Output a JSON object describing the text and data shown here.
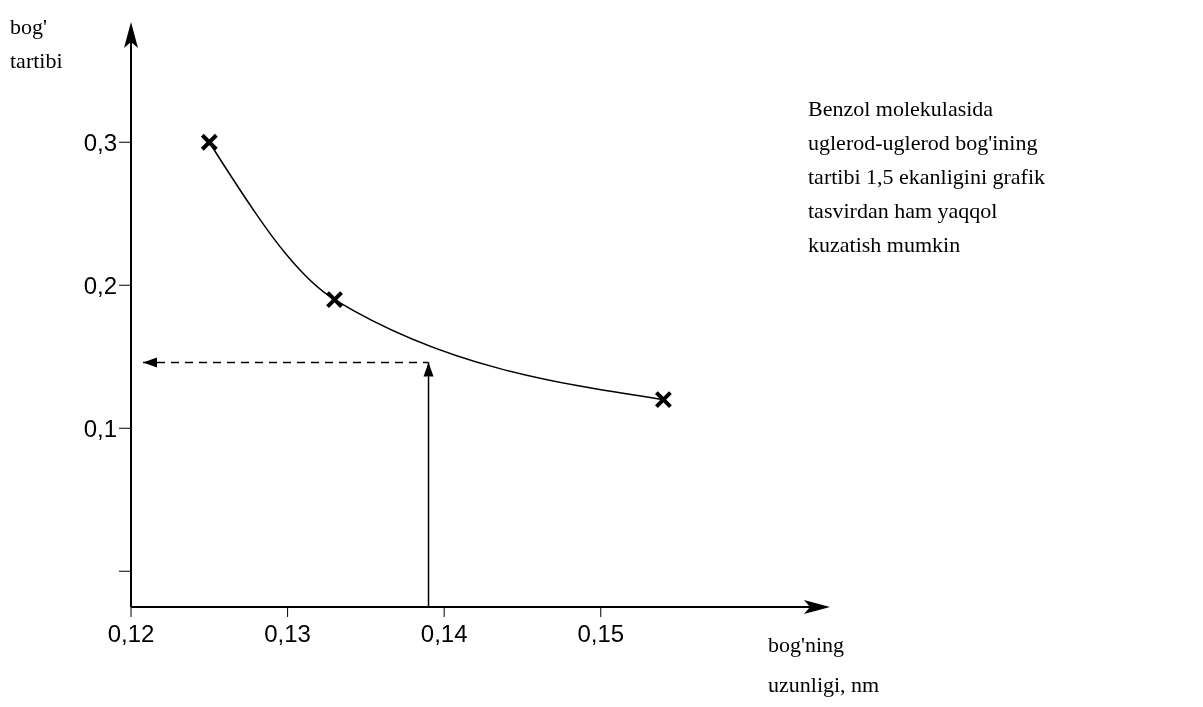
{
  "chart_data": {
    "type": "line",
    "xlabel": "bog'ning\nuzunligi, nm",
    "ylabel": "bog'\ntartibi",
    "annotations": [
      "Benzol molekulasida\nuglerod-uglerod bog'ining\ntartibi 1,5 ekanligini grafik\ntasvirdan ham yaqqol\nkuzatish mumkin"
    ],
    "x": [
      0.125,
      0.133,
      0.154
    ],
    "series": [
      {
        "color": "#000000",
        "values": [
          0.3,
          0.19,
          0.12
        ]
      }
    ],
    "marker": "cross",
    "line_style": "solid",
    "xlim": [
      0.12,
      0.164
    ],
    "xticks": [
      {
        "value": 0.12,
        "label": "0,12"
      },
      {
        "value": 0.13,
        "label": "0,13"
      },
      {
        "value": 0.14,
        "label": "0,14"
      },
      {
        "value": 0.15,
        "label": "0,15"
      }
    ],
    "ylim": [
      -0.025,
      0.375
    ],
    "yticks": [
      {
        "value": 0,
        "label": null
      },
      {
        "value": 0.1,
        "label": "0,1"
      },
      {
        "value": 0.2,
        "label": "0,2"
      },
      {
        "value": 0.3,
        "label": "0,3"
      }
    ],
    "ref_lines": [
      {
        "axis": "x",
        "value": 0.139,
        "line_style": "solid",
        "color": "#000000"
      },
      {
        "axis": "y",
        "value": 0.146,
        "line_style": "dashed",
        "color": "#000000"
      }
    ]
  }
}
